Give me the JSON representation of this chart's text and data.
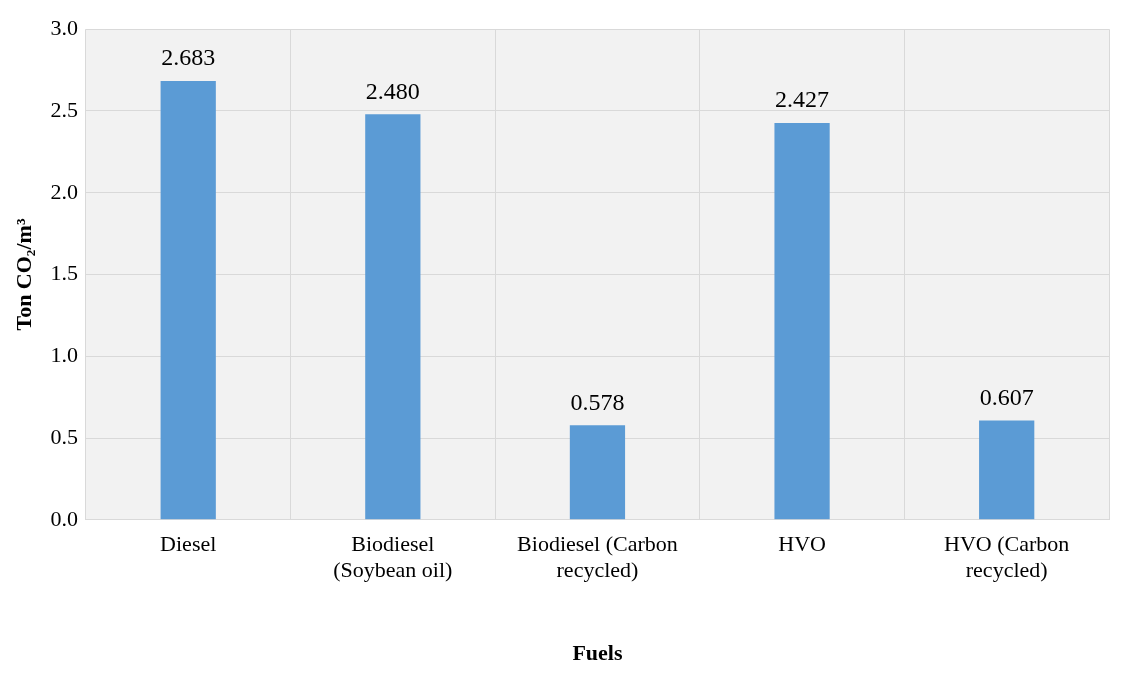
{
  "chart_data": {
    "type": "bar",
    "xlabel": "Fuels",
    "ylabel": "Ton CO₂/m³",
    "categories": [
      "Diesel",
      "Biodiesel (Soybean oil)",
      "Biodiesel (Carbon recycled)",
      "HVO",
      "HVO (Carbon recycled)"
    ],
    "values": [
      2.683,
      2.48,
      0.578,
      2.427,
      0.607
    ],
    "value_labels": [
      "2.683",
      "2.480",
      "0.578",
      "2.427",
      "0.607"
    ],
    "color": "#5b9bd5",
    "ylim": [
      0,
      3
    ],
    "yticks": [
      {
        "value": 0,
        "label": "0.0"
      },
      {
        "value": 0.5,
        "label": "0.5"
      },
      {
        "value": 1,
        "label": "1.0"
      },
      {
        "value": 1.5,
        "label": "1.5"
      },
      {
        "value": 2,
        "label": "2.0"
      },
      {
        "value": 2.5,
        "label": "2.5"
      },
      {
        "value": 3,
        "label": "3.0"
      }
    ],
    "grid": true,
    "legend": false
  }
}
